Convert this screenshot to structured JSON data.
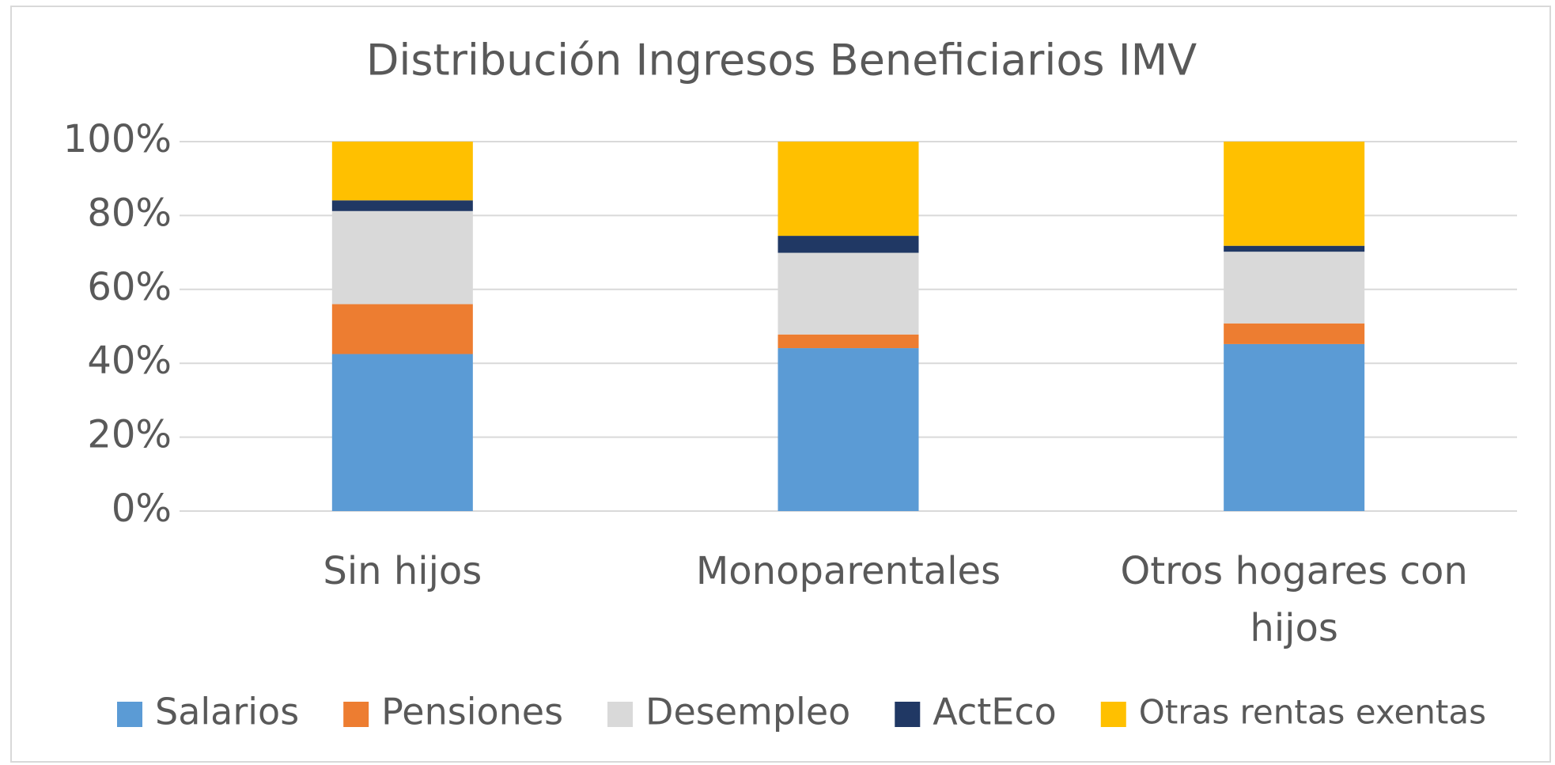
{
  "chart_data": {
    "type": "stacked_bar",
    "title": "Distribución Ingresos Beneficiarios IMV",
    "categories": [
      "Sin hijos",
      "Monoparentales",
      "Otros hogares con hijos"
    ],
    "series": [
      {
        "name": "Salarios",
        "color": "#5b9bd5",
        "values": [
          42.5,
          44.1,
          45.2
        ]
      },
      {
        "name": "Pensiones",
        "color": "#ed7d31",
        "values": [
          13.5,
          3.7,
          5.6
        ]
      },
      {
        "name": "Desempleo",
        "color": "#d9d9d9",
        "values": [
          25.2,
          22.1,
          19.4
        ]
      },
      {
        "name": "ActEco",
        "color": "#203864",
        "values": [
          2.9,
          4.6,
          1.6
        ]
      },
      {
        "name": "Otras rentas exentas",
        "color": "#ffc000",
        "values": [
          15.9,
          25.5,
          28.2
        ]
      }
    ],
    "ylim": [
      0,
      100
    ],
    "yticks": [
      {
        "value": 0,
        "label": "0%"
      },
      {
        "value": 20,
        "label": "20%"
      },
      {
        "value": 40,
        "label": "40%"
      },
      {
        "value": 60,
        "label": "60%"
      },
      {
        "value": 80,
        "label": "80%"
      },
      {
        "value": 100,
        "label": "100%"
      }
    ],
    "grid": true,
    "legend": "bottom"
  }
}
